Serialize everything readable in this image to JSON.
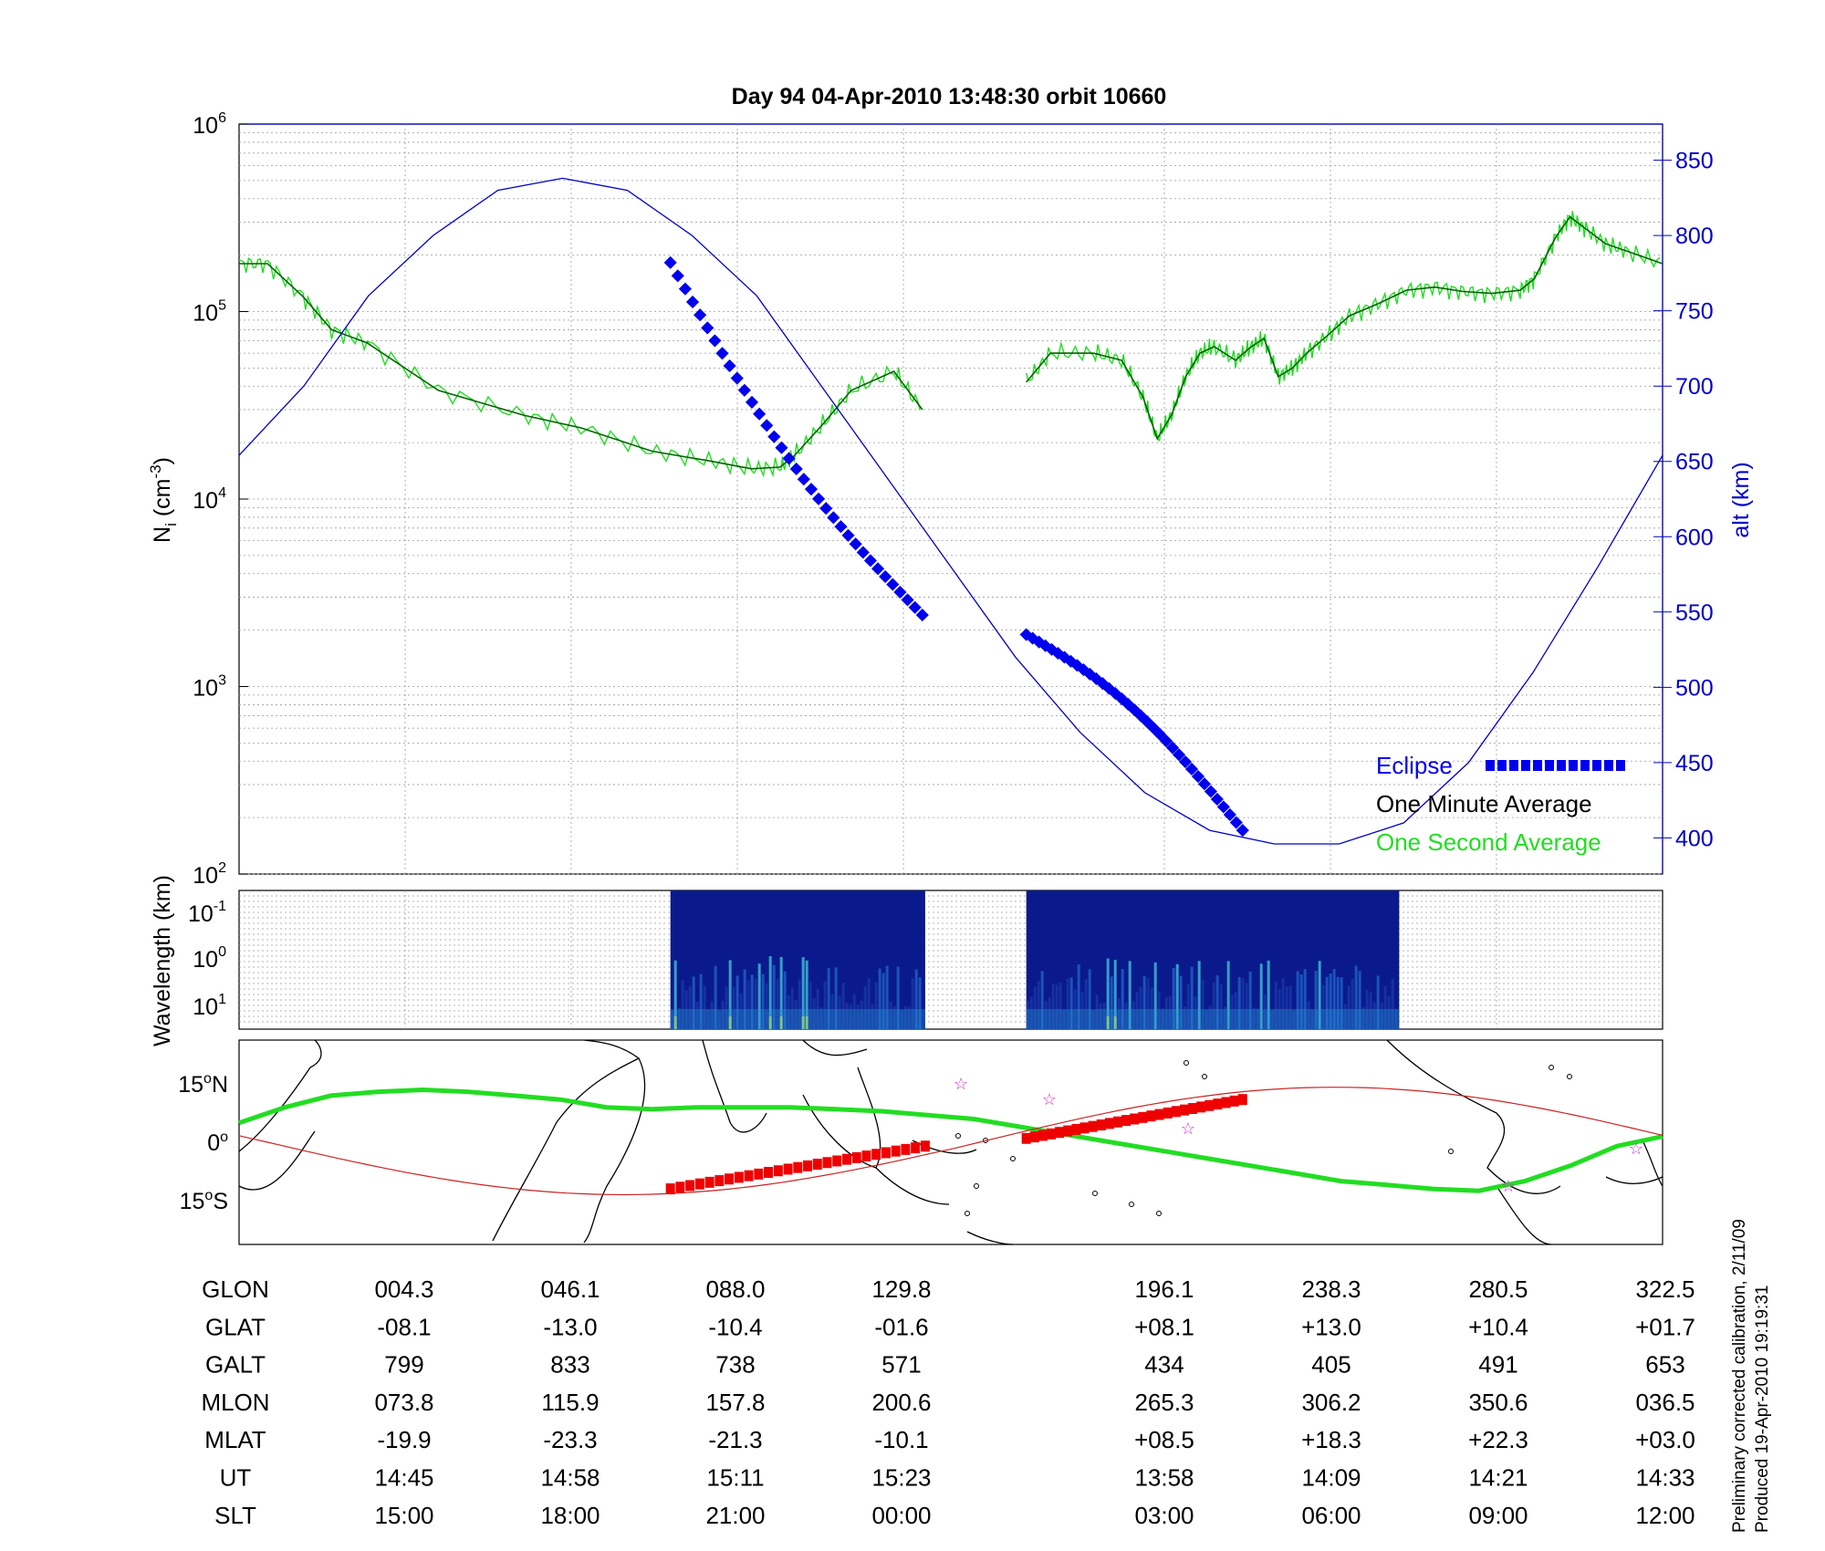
{
  "title": "Day 94  04-Apr-2010 13:48:30   orbit 10660",
  "colors": {
    "one_minute": "#006400",
    "one_second": "#22dd22",
    "altitude": "#0000cc",
    "eclipse": "#0000ee",
    "ground_track": "#22dd22",
    "eclipse_track": "#ee0000",
    "sub_track": "#cc2222",
    "star": "#cc33cc"
  },
  "chart_data": [
    {
      "type": "line",
      "panel": "density",
      "ylabel": "N",
      "ylabel_sub": "i",
      "ylabel_unit_base": " (cm",
      "ylabel_unit_exp": "-3",
      "ylabel_unit_end": ")",
      "yscale": "log",
      "ylim": [
        100,
        1000000
      ],
      "y_ticks": [
        {
          "base": "10",
          "exp": "2"
        },
        {
          "base": "10",
          "exp": "3"
        },
        {
          "base": "10",
          "exp": "4"
        },
        {
          "base": "10",
          "exp": "5"
        },
        {
          "base": "10",
          "exp": "6"
        }
      ],
      "y2label": "alt (km)",
      "y2lim": [
        376,
        874
      ],
      "y2_ticks": [
        "400",
        "450",
        "500",
        "550",
        "600",
        "650",
        "700",
        "750",
        "800",
        "850"
      ],
      "xlim": [
        0,
        1
      ],
      "legend_position": "bottom-right",
      "legend": [
        "Eclipse",
        "One Minute Average",
        "One Second Average"
      ],
      "series": [
        {
          "key": "one_minute_avg_1",
          "x": [
            0,
            0.02,
            0.045,
            0.065,
            0.09,
            0.14,
            0.2,
            0.24,
            0.29,
            0.33,
            0.36,
            0.38,
            0.39,
            0.41,
            0.43,
            0.46,
            0.48
          ],
          "y": [
            180000,
            180000,
            120000,
            80000,
            68000,
            38000,
            28000,
            24000,
            18000,
            16000,
            14500,
            14800,
            17000,
            25000,
            38000,
            48000,
            30000
          ]
        },
        {
          "key": "one_minute_avg_2",
          "x": [
            0.553,
            0.57,
            0.6,
            0.62,
            0.635,
            0.645,
            0.655,
            0.665,
            0.675,
            0.685,
            0.7,
            0.71,
            0.72,
            0.73,
            0.74,
            0.75,
            0.765,
            0.78,
            0.8,
            0.82,
            0.84,
            0.86,
            0.88,
            0.9,
            0.91,
            0.925,
            0.935,
            0.945,
            0.96,
            0.975,
            1.0
          ],
          "y": [
            42000,
            60000,
            60000,
            55000,
            35000,
            21000,
            28000,
            45000,
            60000,
            65000,
            55000,
            64000,
            72000,
            45000,
            50000,
            60000,
            75000,
            95000,
            110000,
            130000,
            135000,
            128000,
            125000,
            130000,
            150000,
            250000,
            320000,
            280000,
            230000,
            210000,
            180000
          ]
        },
        {
          "key": "altitude",
          "y2": [
            654,
            700,
            760,
            800,
            830,
            838,
            830,
            800,
            760,
            700,
            640,
            580,
            520,
            470,
            430,
            405,
            396,
            396,
            410,
            450,
            510,
            580,
            654
          ]
        }
      ],
      "eclipse_segments": [
        {
          "x": [
            0.303,
            0.48
          ],
          "y2": [
            782,
            548
          ]
        },
        {
          "x": [
            0.553,
            0.705
          ],
          "y2": [
            535,
            405
          ]
        }
      ]
    },
    {
      "type": "heatmap",
      "panel": "wavelength",
      "ylabel": "Wavelength (km)",
      "yscale": "log",
      "y_ticks": [
        {
          "base": "10",
          "exp": "-1"
        },
        {
          "base": "10",
          "exp": "0"
        },
        {
          "base": "10",
          "exp": "1"
        }
      ],
      "segments": [
        {
          "x": [
            0.303,
            0.482
          ]
        },
        {
          "x": [
            0.553,
            0.815
          ]
        }
      ]
    },
    {
      "type": "map",
      "panel": "ground-track",
      "y_ticks": [
        {
          "value": 15,
          "label": "15",
          "hem": "N"
        },
        {
          "value": 0,
          "label": "0",
          "hem": ""
        },
        {
          "value": -15,
          "label": "15",
          "hem": "S"
        }
      ],
      "ylim": [
        -25,
        25
      ]
    }
  ],
  "table": {
    "row_labels": [
      "GLON",
      "GLAT",
      "GALT",
      "MLON",
      "MLAT",
      "UT",
      "SLT"
    ],
    "columns": [
      [
        "004.3",
        "-08.1",
        "799",
        "073.8",
        "-19.9",
        "14:45",
        "15:00"
      ],
      [
        "046.1",
        "-13.0",
        "833",
        "115.9",
        "-23.3",
        "14:58",
        "18:00"
      ],
      [
        "088.0",
        "-10.4",
        "738",
        "157.8",
        "-21.3",
        "15:11",
        "21:00"
      ],
      [
        "129.8",
        "-01.6",
        "571",
        "200.6",
        "-10.1",
        "15:23",
        "00:00"
      ],
      [
        "196.1",
        "+08.1",
        "434",
        "265.3",
        "+08.5",
        "13:58",
        "03:00"
      ],
      [
        "238.3",
        "+13.0",
        "405",
        "306.2",
        "+18.3",
        "14:09",
        "06:00"
      ],
      [
        "280.5",
        "+10.4",
        "491",
        "350.6",
        "+22.3",
        "14:21",
        "09:00"
      ],
      [
        "322.5",
        "+01.7",
        "653",
        "036.5",
        "+03.0",
        "14:33",
        "12:00"
      ]
    ]
  },
  "footnote": {
    "line1": "Preliminary corrected calibration, 2/11/09",
    "line2": "Produced 19-Apr-2010 19:19:31"
  }
}
